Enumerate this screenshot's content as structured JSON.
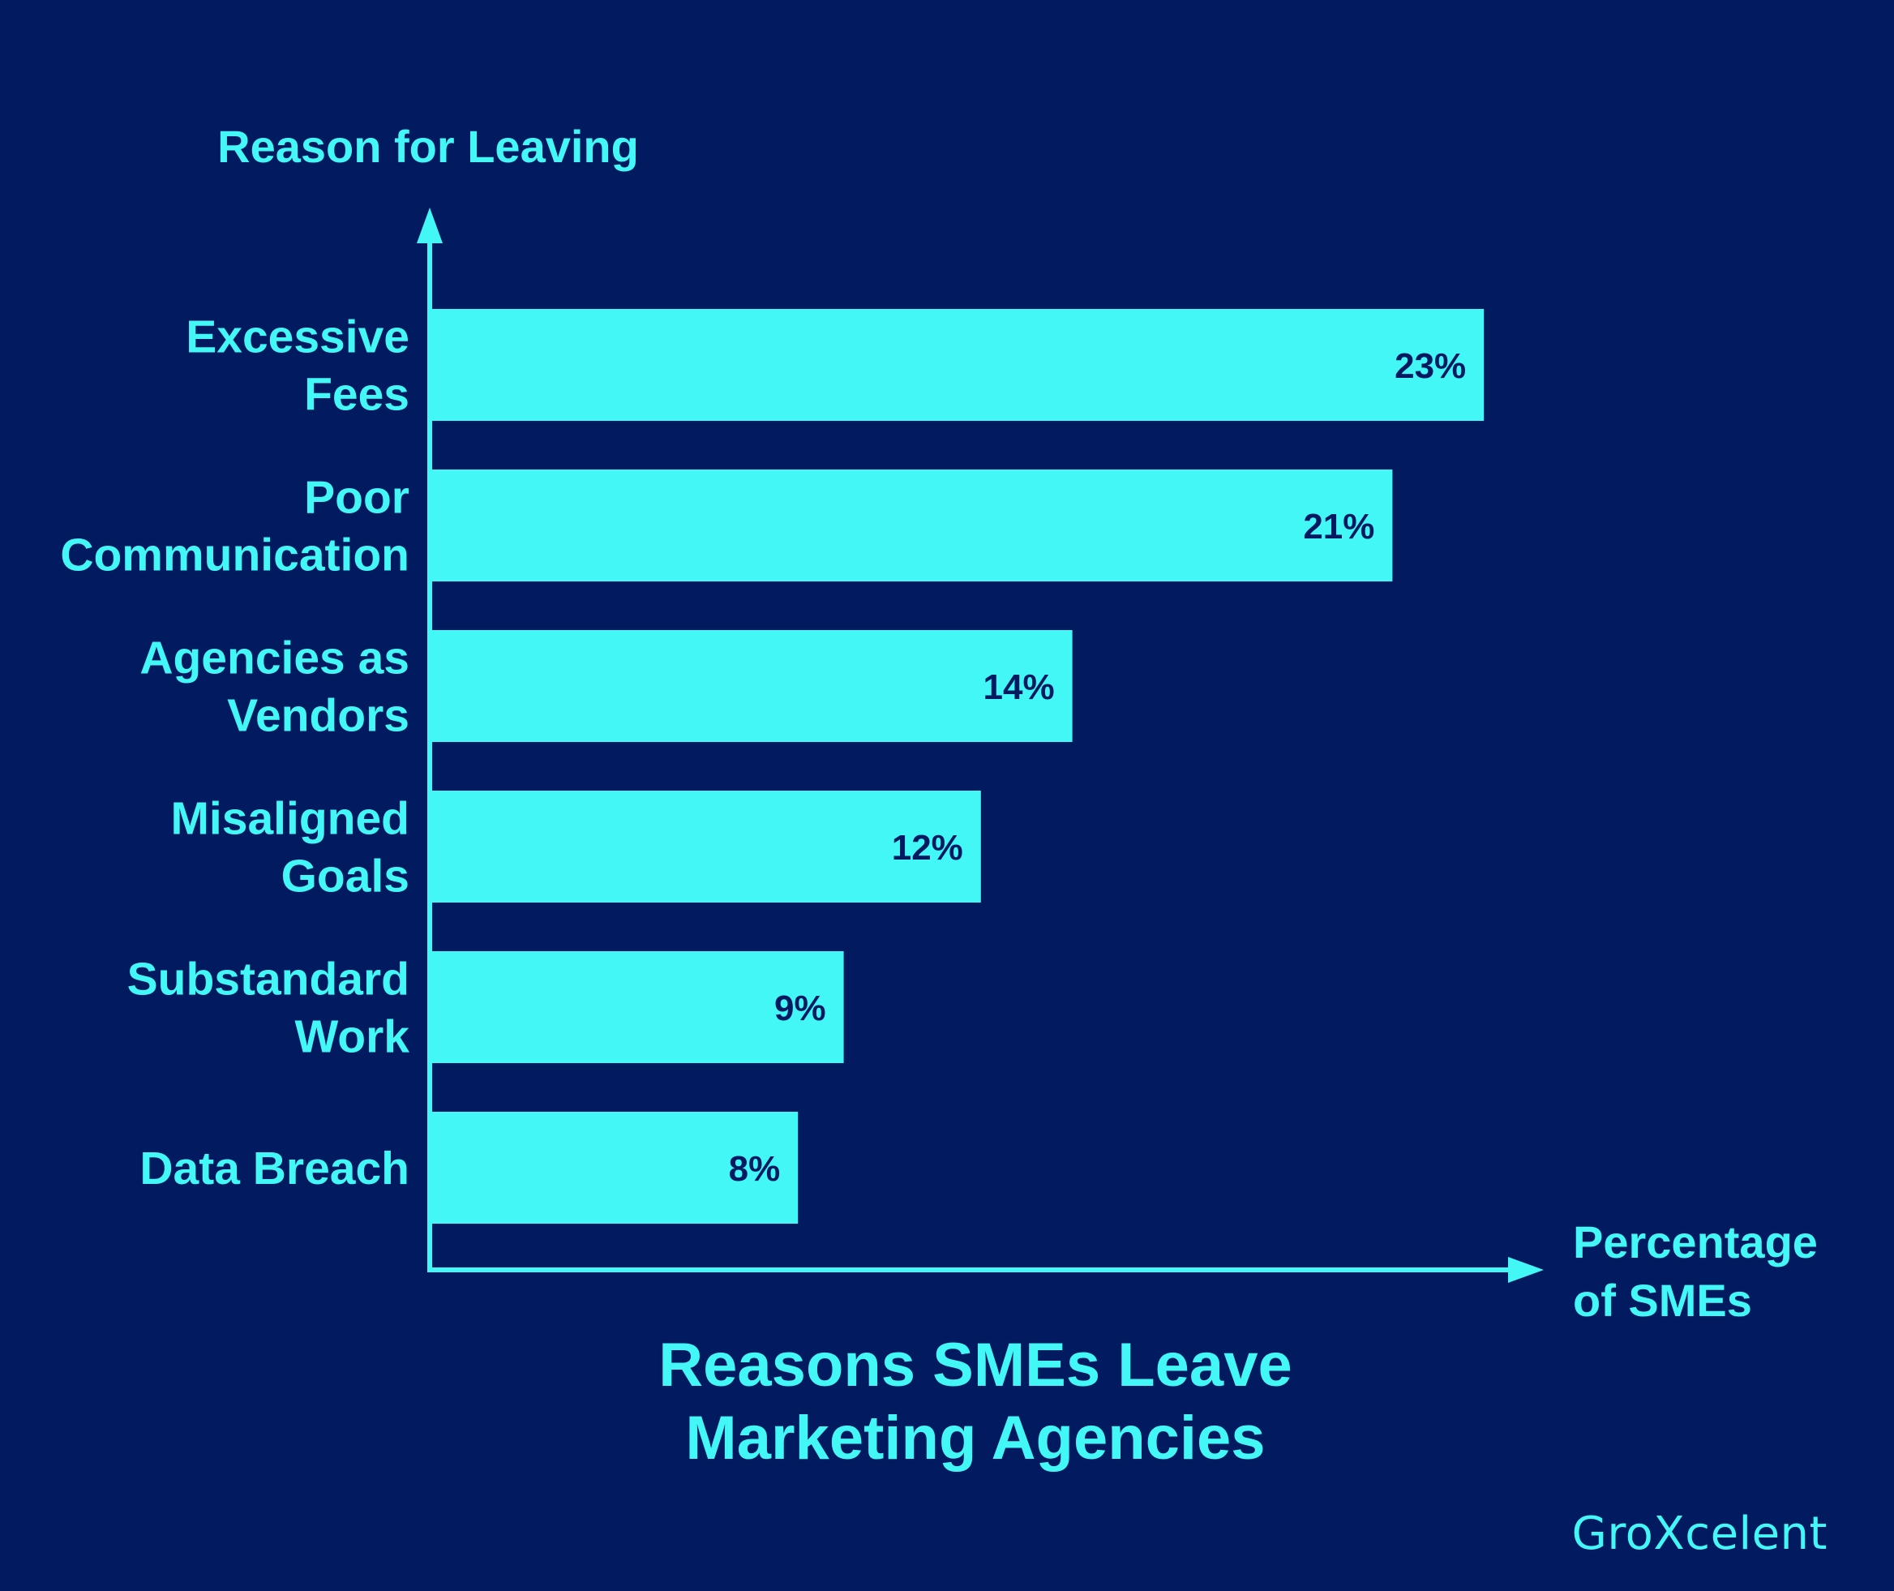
{
  "chart_data": {
    "type": "bar",
    "orientation": "horizontal",
    "title_lines": [
      "Reasons SMEs Leave",
      "Marketing Agencies"
    ],
    "ylabel": "Reason for Leaving",
    "xlabel_lines": [
      "Percentage",
      "of SMEs"
    ],
    "categories": [
      [
        "Excessive",
        "Fees"
      ],
      [
        "Poor",
        "Communication"
      ],
      [
        "Agencies as",
        "Vendors"
      ],
      [
        "Misaligned",
        "Goals"
      ],
      [
        "Substandard",
        "Work"
      ],
      [
        "Data Breach"
      ]
    ],
    "values": [
      23,
      21,
      14,
      12,
      9,
      8
    ],
    "value_labels": [
      "23%",
      "21%",
      "14%",
      "12%",
      "9%",
      "8%"
    ],
    "xlim": [
      0,
      25
    ],
    "grid": false,
    "legend": "none"
  },
  "colors": {
    "background": "#011a60",
    "accent": "#43f7f7",
    "bar_label": "#011a60"
  },
  "brand": "GroXcelent"
}
